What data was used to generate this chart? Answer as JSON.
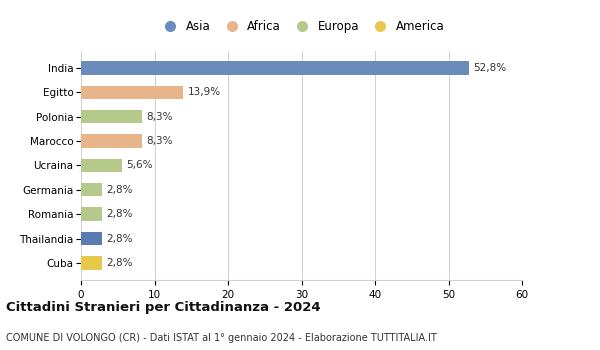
{
  "categories": [
    "India",
    "Egitto",
    "Polonia",
    "Marocco",
    "Ucraina",
    "Germania",
    "Romania",
    "Thailandia",
    "Cuba"
  ],
  "values": [
    52.8,
    13.9,
    8.3,
    8.3,
    5.6,
    2.8,
    2.8,
    2.8,
    2.8
  ],
  "labels": [
    "52,8%",
    "13,9%",
    "8,3%",
    "8,3%",
    "5,6%",
    "2,8%",
    "2,8%",
    "2,8%",
    "2,8%"
  ],
  "colors": [
    "#6b8cba",
    "#e8b48a",
    "#b5c98a",
    "#e8b48a",
    "#b5c98a",
    "#b5c98a",
    "#b5c98a",
    "#5b7bb5",
    "#e8c84a"
  ],
  "legend_labels": [
    "Asia",
    "Africa",
    "Europa",
    "America"
  ],
  "legend_colors": [
    "#6b8cba",
    "#e8b48a",
    "#b5c98a",
    "#e8c84a"
  ],
  "xlim": [
    0,
    60
  ],
  "xticks": [
    0,
    10,
    20,
    30,
    40,
    50,
    60
  ],
  "title": "Cittadini Stranieri per Cittadinanza - 2024",
  "subtitle": "COMUNE DI VOLONGO (CR) - Dati ISTAT al 1° gennaio 2024 - Elaborazione TUTTITALIA.IT",
  "background_color": "#ffffff",
  "grid_color": "#d0d0d0",
  "bar_height": 0.55
}
